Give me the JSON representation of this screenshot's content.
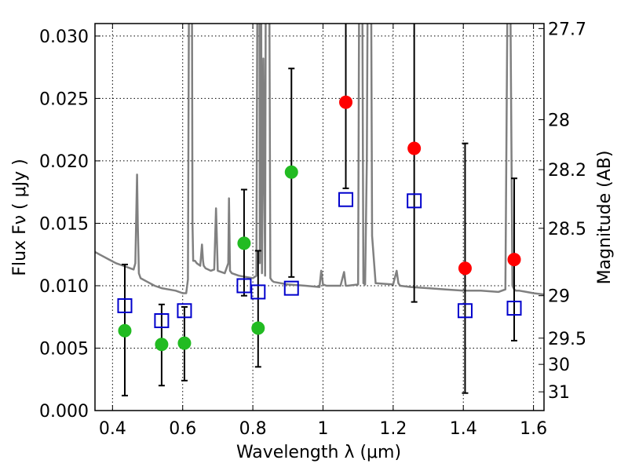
{
  "chart_data": {
    "type": "scatter",
    "xlabel": "Wavelength  λ (μm)",
    "ylabel": "Flux  Fν  ( μJy )",
    "y2label": "Magnitude (AB)",
    "xlim": [
      0.35,
      1.63
    ],
    "ylim": [
      0.0,
      0.031
    ],
    "grid": true,
    "x_ticks": [
      {
        "value": 0.4,
        "label": "0.4"
      },
      {
        "value": 0.6,
        "label": "0.6"
      },
      {
        "value": 0.8,
        "label": "0.8"
      },
      {
        "value": 1.0,
        "label": "1"
      },
      {
        "value": 1.2,
        "label": "1.2"
      },
      {
        "value": 1.4,
        "label": "1.4"
      },
      {
        "value": 1.6,
        "label": "1.6"
      }
    ],
    "y_ticks": [
      {
        "value": 0.0,
        "label": "0.000"
      },
      {
        "value": 0.005,
        "label": "0.005"
      },
      {
        "value": 0.01,
        "label": "0.010"
      },
      {
        "value": 0.015,
        "label": "0.015"
      },
      {
        "value": 0.02,
        "label": "0.020"
      },
      {
        "value": 0.025,
        "label": "0.025"
      },
      {
        "value": 0.03,
        "label": "0.030"
      }
    ],
    "y2_ticks": [
      {
        "flux": 0.0306,
        "label": "27.7"
      },
      {
        "flux": 0.0233,
        "label": "28"
      },
      {
        "flux": 0.0193,
        "label": "28.2"
      },
      {
        "flux": 0.0146,
        "label": "28.5"
      },
      {
        "flux": 0.0092,
        "label": "29"
      },
      {
        "flux": 0.0058,
        "label": "29.5"
      },
      {
        "flux": 0.0037,
        "label": "30"
      },
      {
        "flux": 0.0015,
        "label": "31"
      }
    ],
    "series": [
      {
        "name": "model spectrum",
        "kind": "line",
        "color": "#808080",
        "x": [
          0.35,
          0.37,
          0.39,
          0.41,
          0.43,
          0.45,
          0.46,
          0.465,
          0.47,
          0.472,
          0.475,
          0.48,
          0.5,
          0.52,
          0.54,
          0.56,
          0.58,
          0.6,
          0.61,
          0.615,
          0.62,
          0.622,
          0.625,
          0.628,
          0.63,
          0.635,
          0.64,
          0.65,
          0.655,
          0.658,
          0.66,
          0.665,
          0.68,
          0.69,
          0.695,
          0.7,
          0.72,
          0.73,
          0.732,
          0.735,
          0.74,
          0.76,
          0.78,
          0.8,
          0.81,
          0.815,
          0.818,
          0.82,
          0.822,
          0.826,
          0.83,
          0.835,
          0.838,
          0.842,
          0.845,
          0.85,
          0.855,
          0.86,
          0.9,
          0.95,
          0.99,
          0.995,
          1.0,
          1.01,
          1.05,
          1.06,
          1.065,
          1.07,
          1.1,
          1.105,
          1.11,
          1.115,
          1.12,
          1.125,
          1.13,
          1.135,
          1.14,
          1.15,
          1.2,
          1.21,
          1.215,
          1.22,
          1.25,
          1.3,
          1.35,
          1.4,
          1.45,
          1.5,
          1.52,
          1.525,
          1.53,
          1.535,
          1.54,
          1.545,
          1.55,
          1.56,
          1.58,
          1.6,
          1.63
        ],
        "y": [
          0.0127,
          0.0124,
          0.0121,
          0.0118,
          0.0116,
          0.0114,
          0.0113,
          0.0118,
          0.0189,
          0.015,
          0.011,
          0.0106,
          0.0103,
          0.01,
          0.0098,
          0.0097,
          0.0096,
          0.0094,
          0.0094,
          0.0105,
          0.05,
          0.05,
          0.05,
          0.015,
          0.012,
          0.012,
          0.0118,
          0.0116,
          0.0133,
          0.012,
          0.0116,
          0.0114,
          0.0112,
          0.0113,
          0.0162,
          0.0112,
          0.011,
          0.0118,
          0.017,
          0.0112,
          0.011,
          0.0108,
          0.0107,
          0.0106,
          0.0108,
          0.05,
          0.05,
          0.0118,
          0.05,
          0.011,
          0.0282,
          0.0108,
          0.05,
          0.05,
          0.05,
          0.0106,
          0.0104,
          0.0103,
          0.0101,
          0.01,
          0.0099,
          0.0112,
          0.0101,
          0.01,
          0.01,
          0.0111,
          0.01,
          0.01,
          0.0101,
          0.05,
          0.05,
          0.0102,
          0.0101,
          0.02,
          0.05,
          0.05,
          0.014,
          0.0102,
          0.0101,
          0.0112,
          0.0102,
          0.01,
          0.0099,
          0.0098,
          0.0097,
          0.0096,
          0.0096,
          0.0095,
          0.0097,
          0.03,
          0.05,
          0.03,
          0.01,
          0.0097,
          0.0096,
          0.0096,
          0.0095,
          0.0094,
          0.0093
        ]
      },
      {
        "name": "green points",
        "kind": "marker",
        "marker": "circle",
        "color": "#22bb22",
        "x": [
          0.435,
          0.54,
          0.605,
          0.775,
          0.815,
          0.91
        ],
        "y": [
          0.0064,
          0.0053,
          0.0054,
          0.0134,
          0.0066,
          0.0191
        ]
      },
      {
        "name": "red points",
        "kind": "marker",
        "marker": "circle",
        "color": "#ff0000",
        "x": [
          1.065,
          1.26,
          1.405,
          1.545
        ],
        "y": [
          0.0247,
          0.021,
          0.0114,
          0.0121
        ]
      },
      {
        "name": "open squares",
        "kind": "marker",
        "marker": "square",
        "color": "#0000cc",
        "x": [
          0.435,
          0.54,
          0.605,
          0.775,
          0.815,
          0.91,
          1.065,
          1.26,
          1.405,
          1.545
        ],
        "y": [
          0.0084,
          0.0072,
          0.008,
          0.01,
          0.0095,
          0.0098,
          0.0169,
          0.0168,
          0.008,
          0.0082
        ],
        "err_low": [
          0.0012,
          0.002,
          0.0024,
          0.0092,
          0.0035,
          0.0107,
          0.0178,
          0.0087,
          0.0014,
          0.0056
        ],
        "err_high": [
          0.0117,
          0.0085,
          0.0083,
          0.0177,
          0.0128,
          0.0274,
          0.035,
          0.035,
          0.0214,
          0.0186
        ]
      }
    ]
  }
}
